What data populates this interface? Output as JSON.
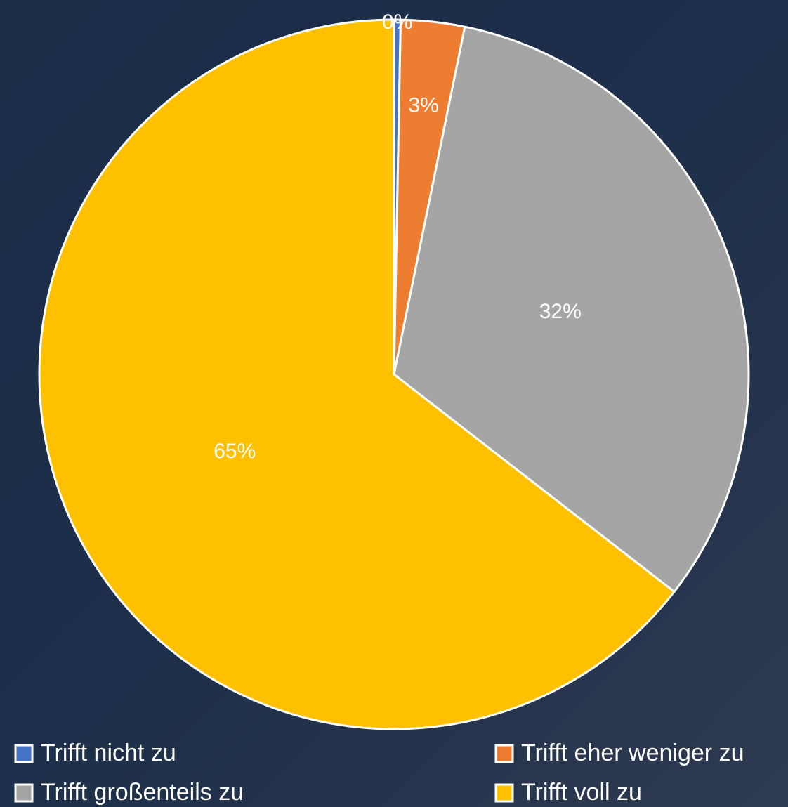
{
  "chart_data": {
    "type": "pie",
    "categories": [
      "Trifft nicht zu",
      "Trifft eher weniger zu",
      "Trifft großenteils zu",
      "Trifft voll zu"
    ],
    "values": [
      0.3,
      2.9,
      32.3,
      64.5
    ],
    "value_labels": [
      "0%",
      "3%",
      "32%",
      "65%"
    ],
    "colors": [
      "#4472c4",
      "#ed7d31",
      "#a5a5a5",
      "#ffc000"
    ],
    "legend": "bottom"
  }
}
